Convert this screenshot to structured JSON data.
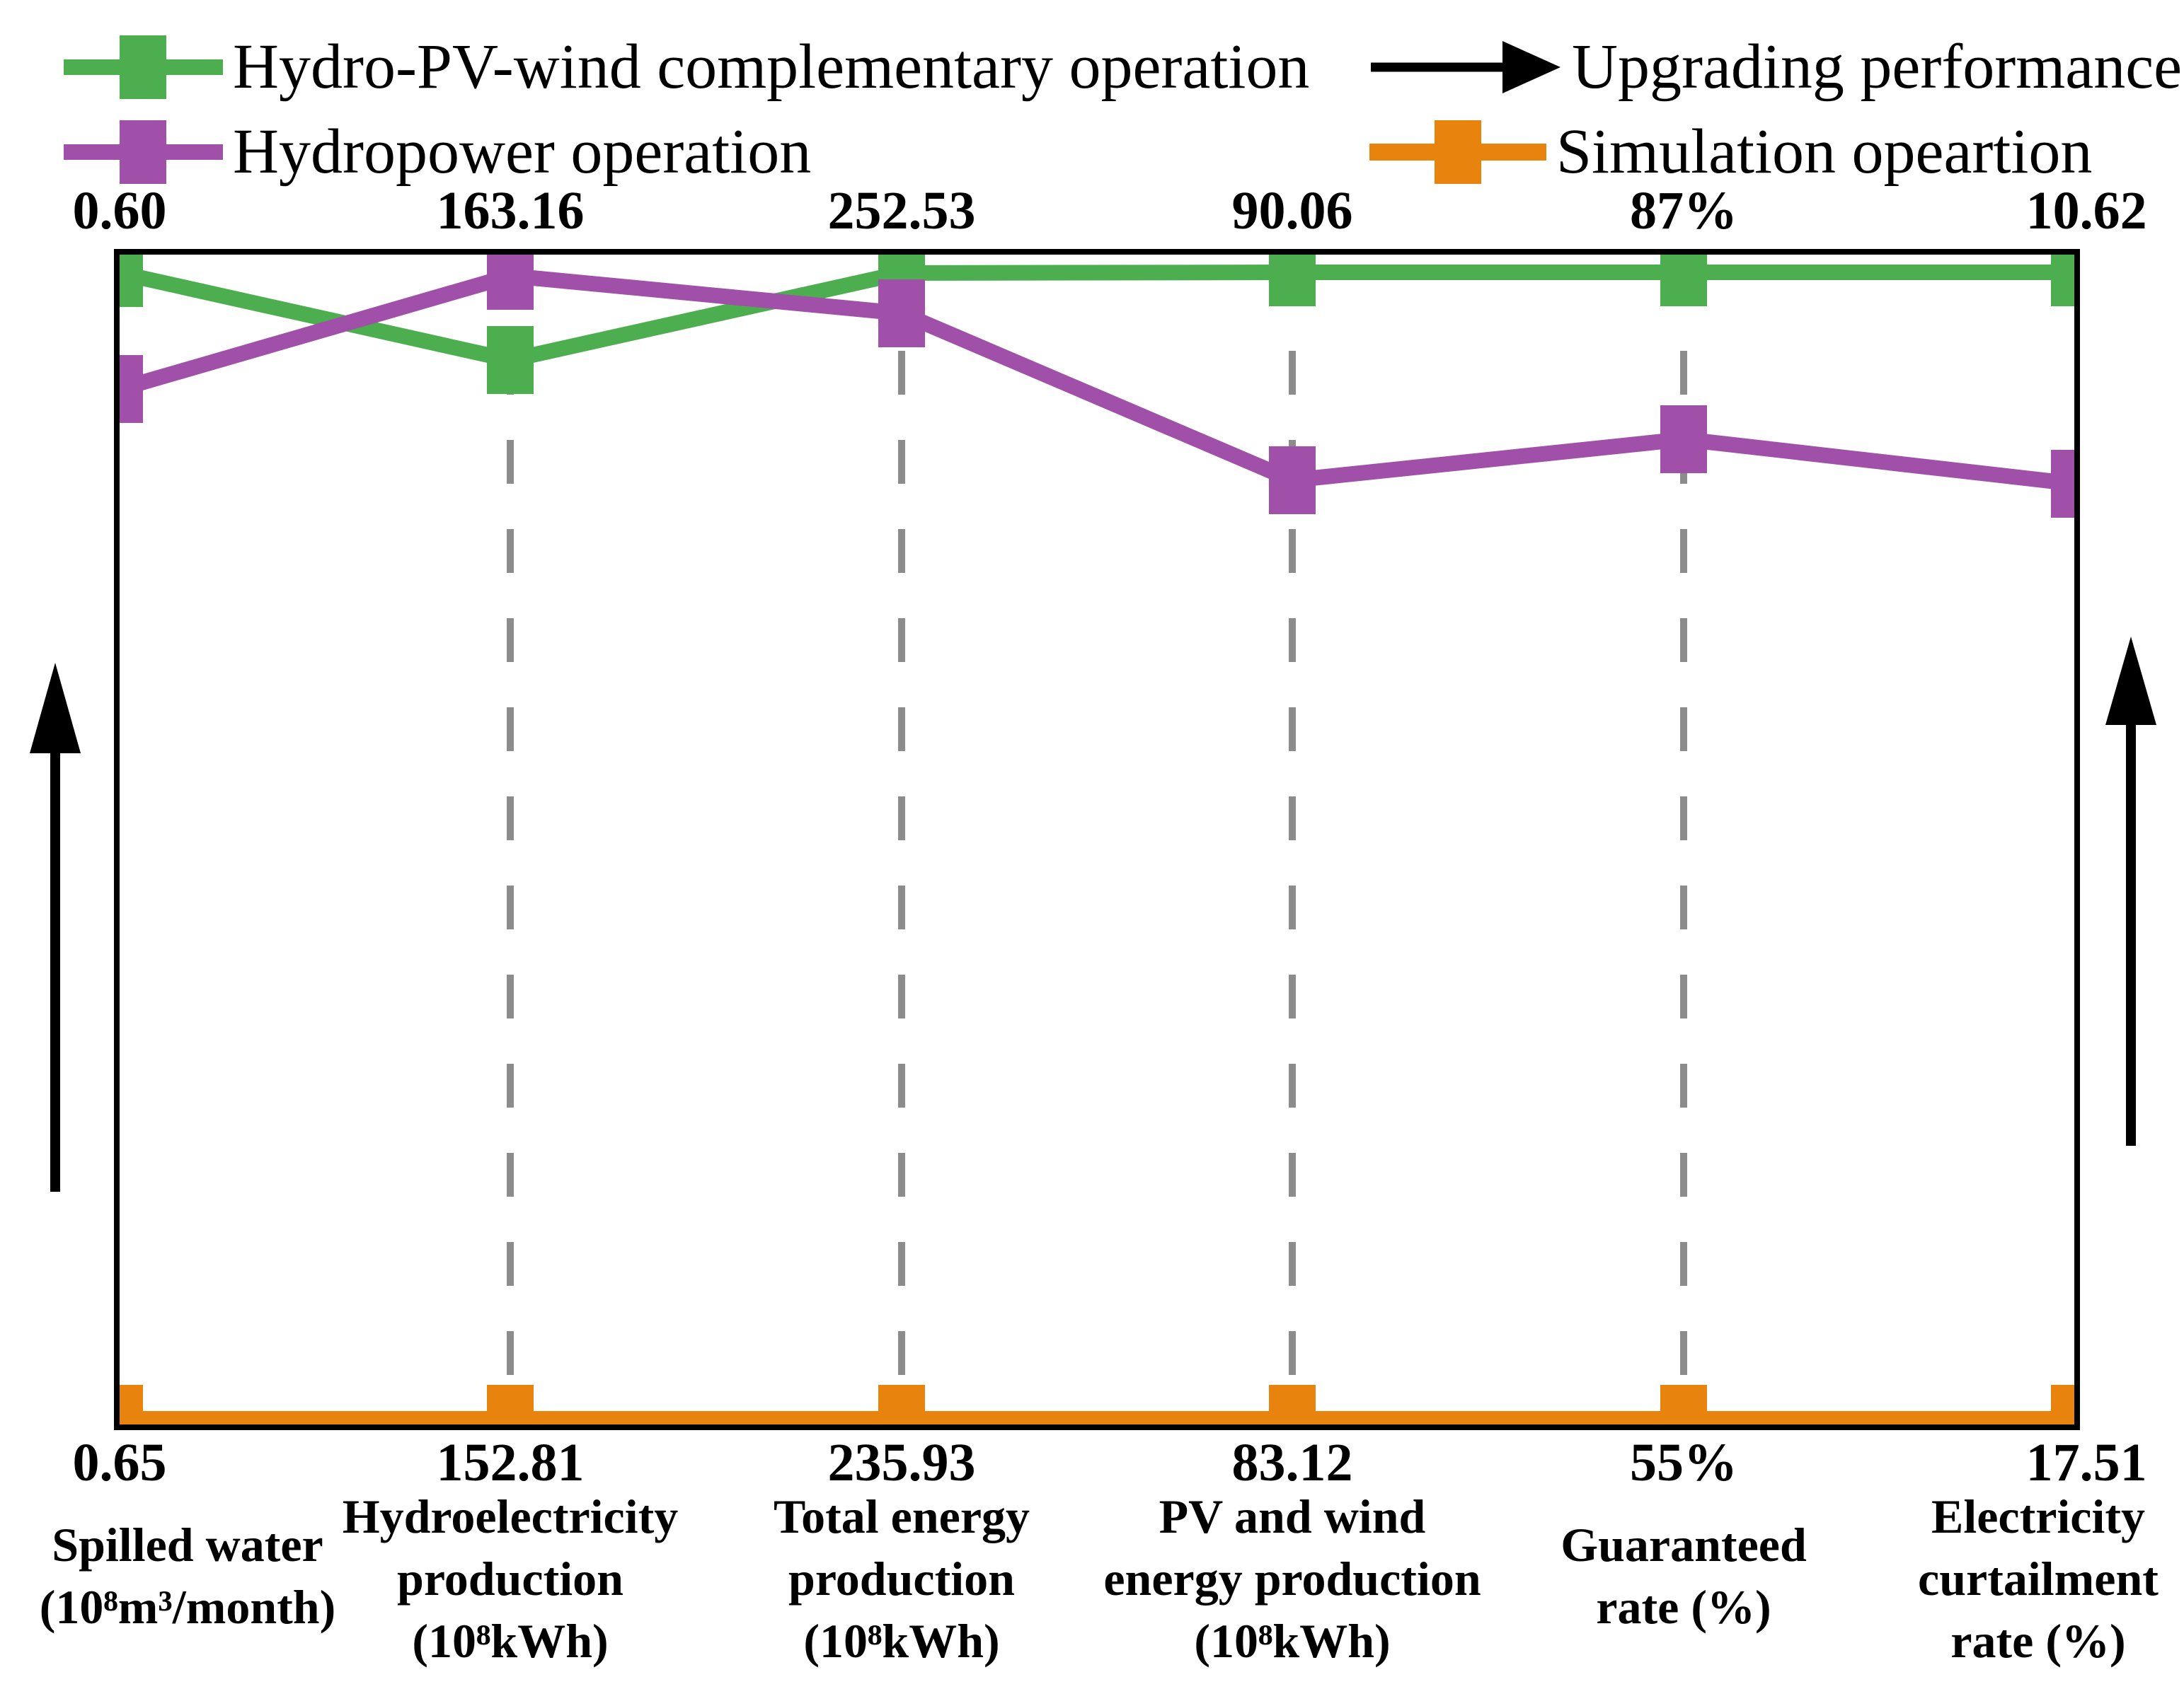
{
  "legend": {
    "items": [
      {
        "label": "Hydro-PV-wind complementary operation",
        "color": "#4cae4f",
        "marker": "square-on-line"
      },
      {
        "label": "Hydropower operation",
        "color": "#a050a8",
        "marker": "square-on-line"
      },
      {
        "label": "Upgrading performance",
        "color": "#000000",
        "marker": "right-arrow"
      },
      {
        "label": "Simulation opeartion",
        "color": "#e8830d",
        "marker": "square-on-line"
      }
    ]
  },
  "axes": [
    {
      "top_label": "0.60",
      "bottom_label": "0.65",
      "lines": [
        "Spilled water",
        "(10⁸m³/month)"
      ]
    },
    {
      "top_label": "163.16",
      "bottom_label": "152.81",
      "lines": [
        "Hydroelectricity",
        "production",
        "(10⁸kWh)"
      ]
    },
    {
      "top_label": "252.53",
      "bottom_label": "235.93",
      "lines": [
        "Total energy",
        "production",
        "(10⁸kWh)"
      ]
    },
    {
      "top_label": "90.06",
      "bottom_label": "83.12",
      "lines": [
        "PV and wind",
        "energy production",
        "(10⁸kWh)"
      ]
    },
    {
      "top_label": "87%",
      "bottom_label": "55%",
      "lines": [
        "Guaranteed",
        "rate (%)"
      ]
    },
    {
      "top_label": "10.62",
      "bottom_label": "17.51",
      "lines": [
        "Electricity",
        "curtailment",
        "rate (%)"
      ]
    }
  ],
  "side_arrows_meaning": "Upgrading performance (upward arrows on both sides of the plot)",
  "colors": {
    "complementary": "#4cae4f",
    "hydropower": "#a050a8",
    "simulation": "#e8830d",
    "gridline": "#8c8c8c",
    "frame": "#000000"
  },
  "chart_data": {
    "type": "line",
    "subtype": "parallel-coordinates",
    "categories": [
      "Spilled water (10⁸m³/month)",
      "Hydroelectricity production (10⁸kWh)",
      "Total energy production (10⁸kWh)",
      "PV and wind energy production (10⁸kWh)",
      "Guaranteed rate (%)",
      "Electricity curtailment rate (%)"
    ],
    "top_axis_labels": [
      "0.60",
      "163.16",
      "252.53",
      "90.06",
      "87%",
      "10.62"
    ],
    "bottom_axis_labels": [
      "0.65",
      "152.81",
      "235.93",
      "83.12",
      "55%",
      "17.51"
    ],
    "axis_note": "Each vertical axis has its own scale: the top row of numbers marks the best (upgraded) value reached by the Hydro-PV-wind complementary operation, the bottom row the value of the Simulation opeartion; arrows indicate that upward means upgrading performance.",
    "series": [
      {
        "name": "Hydro-PV-wind complementary operation",
        "data_name": "complementary-series",
        "color": "#4cae4f",
        "values": [
          "0.60",
          "163.16",
          "252.53",
          "90.06",
          "87%",
          "10.62"
        ],
        "position_frac_from_top": [
          0.016,
          0.09,
          0.016,
          0.015,
          0.015,
          0.015
        ]
      },
      {
        "name": "Hydropower operation",
        "data_name": "hydropower-series",
        "color": "#a050a8",
        "values_estimated": [
          "0.61",
          "163.0",
          "251.7",
          "88.7",
          "82%",
          "12.0"
        ],
        "position_frac_from_top": [
          0.115,
          0.018,
          0.05,
          0.193,
          0.158,
          0.196
        ]
      },
      {
        "name": "Simulation opeartion",
        "data_name": "simulation-series",
        "color": "#e8830d",
        "values": [
          "0.65",
          "152.81",
          "235.93",
          "83.12",
          "55%",
          "17.51"
        ],
        "position_frac_from_top": [
          0.995,
          0.995,
          0.995,
          0.995,
          0.995,
          0.995
        ]
      }
    ],
    "legend_position": "top",
    "grid": "vertical dashed gray lines at the four interior axes",
    "marker": "filled rectangle"
  }
}
